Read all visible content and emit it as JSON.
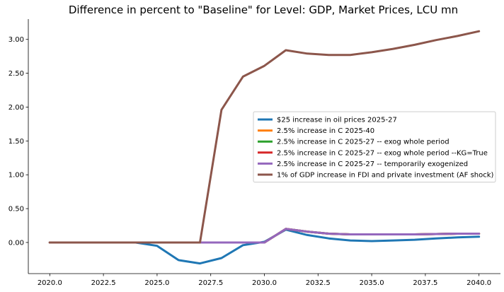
{
  "chart_data": {
    "type": "line",
    "title": "Difference in percent to \"Baseline\" for Level: GDP, Market Prices, LCU mn",
    "xlabel": "",
    "ylabel": "",
    "xlim": [
      2019.0,
      2041.0
    ],
    "ylim": [
      -0.46,
      3.3
    ],
    "x_ticks": [
      2020,
      2022.5,
      2025,
      2027.5,
      2030,
      2032.5,
      2035,
      2037.5,
      2040
    ],
    "x_tick_labels": [
      "2020.0",
      "2022.5",
      "2025.0",
      "2027.5",
      "2030.0",
      "2032.5",
      "2035.0",
      "2037.5",
      "2040.0"
    ],
    "y_ticks": [
      0,
      0.5,
      1,
      1.5,
      2,
      2.5,
      3
    ],
    "y_tick_labels": [
      "0.00",
      "0.50",
      "1.00",
      "1.50",
      "2.00",
      "2.50",
      "3.00"
    ],
    "grid": false,
    "legend_position": "center-right",
    "x": [
      2020,
      2021,
      2022,
      2023,
      2024,
      2025,
      2026,
      2027,
      2028,
      2029,
      2030,
      2031,
      2032,
      2033,
      2034,
      2035,
      2036,
      2037,
      2038,
      2039,
      2040
    ],
    "series": [
      {
        "name": "$25 increase in oil prices 2025-27",
        "color": "#1f77b4",
        "values": [
          0,
          0,
          0,
          0,
          0,
          -0.05,
          -0.26,
          -0.31,
          -0.23,
          -0.04,
          0.01,
          0.19,
          0.11,
          0.06,
          0.03,
          0.02,
          0.03,
          0.04,
          0.06,
          0.075,
          0.085
        ]
      },
      {
        "name": "2.5% increase in C 2025-40",
        "color": "#ff7f0e",
        "values": [
          0,
          0,
          0,
          0,
          0,
          0,
          0,
          0,
          0,
          0,
          0,
          0.2,
          0.16,
          0.13,
          0.12,
          0.12,
          0.12,
          0.12,
          0.125,
          0.13,
          0.13
        ]
      },
      {
        "name": "2.5% increase in C 2025-27 -- exog whole period",
        "color": "#2ca02c",
        "values": [
          0,
          0,
          0,
          0,
          0,
          0,
          0,
          0,
          0,
          0,
          0,
          0.2,
          0.16,
          0.13,
          0.12,
          0.12,
          0.12,
          0.12,
          0.125,
          0.13,
          0.13
        ]
      },
      {
        "name": "2.5% increase in C 2025-27 -- exog whole period --KG=True",
        "color": "#d62728",
        "values": [
          0,
          0,
          0,
          0,
          0,
          0,
          0,
          0,
          0,
          0,
          0,
          0.2,
          0.16,
          0.13,
          0.12,
          0.12,
          0.12,
          0.12,
          0.125,
          0.13,
          0.13
        ]
      },
      {
        "name": "2.5% increase in C 2025-27 -- temporarily exogenized",
        "color": "#9467bd",
        "values": [
          0,
          0,
          0,
          0,
          0,
          0,
          0,
          0,
          0,
          0,
          0,
          0.2,
          0.16,
          0.13,
          0.12,
          0.12,
          0.12,
          0.12,
          0.125,
          0.13,
          0.13
        ]
      },
      {
        "name": "1% of GDP increase in FDI and private investment (AF shock)",
        "color": "#8c564b",
        "values": [
          0,
          0,
          0,
          0,
          0,
          0,
          0,
          0,
          1.96,
          2.45,
          2.61,
          2.84,
          2.79,
          2.77,
          2.77,
          2.81,
          2.86,
          2.92,
          2.99,
          3.05,
          3.12
        ]
      }
    ]
  }
}
